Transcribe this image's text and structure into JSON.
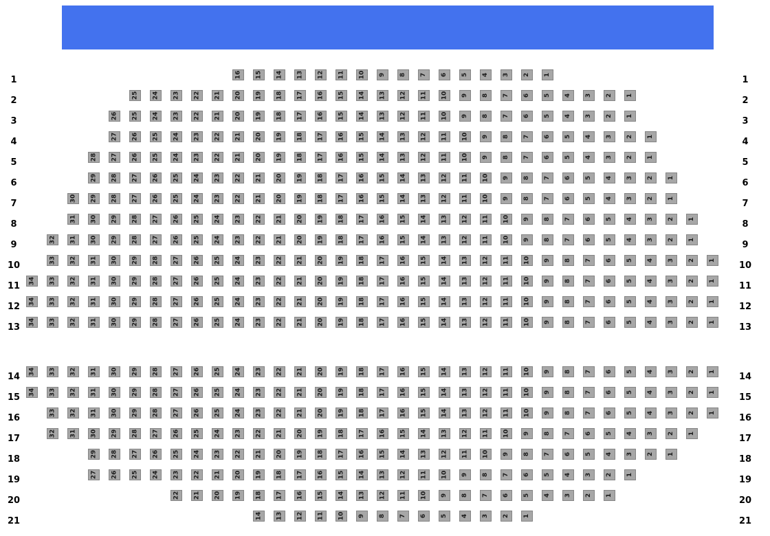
{
  "colors": {
    "background": "#ffffff",
    "stage": "#4372ee",
    "seat_fill": "#a7a7a7",
    "seat_border": "#848484",
    "seat_text": "#1c1c1c",
    "label_text": "#000000"
  },
  "stage": {},
  "rows": [
    {
      "label": "1",
      "section": 1,
      "left_col": 10,
      "seats": [
        16,
        15,
        14,
        13,
        12,
        11,
        10,
        9,
        8,
        7,
        6,
        5,
        4,
        3,
        2,
        1
      ]
    },
    {
      "label": "2",
      "section": 1,
      "left_col": 5,
      "seats": [
        25,
        24,
        23,
        22,
        21,
        20,
        19,
        18,
        17,
        16,
        15,
        14,
        13,
        12,
        11,
        10,
        9,
        8,
        7,
        6,
        5,
        4,
        3,
        2,
        1
      ]
    },
    {
      "label": "3",
      "section": 1,
      "left_col": 4,
      "seats": [
        26,
        25,
        24,
        23,
        22,
        21,
        20,
        19,
        18,
        17,
        16,
        15,
        14,
        13,
        12,
        11,
        10,
        9,
        8,
        7,
        6,
        5,
        4,
        3,
        2,
        1
      ]
    },
    {
      "label": "4",
      "section": 1,
      "left_col": 4,
      "seats": [
        27,
        26,
        25,
        24,
        23,
        22,
        21,
        20,
        19,
        18,
        17,
        16,
        15,
        14,
        13,
        12,
        11,
        10,
        9,
        8,
        7,
        6,
        5,
        4,
        3,
        2,
        1
      ]
    },
    {
      "label": "5",
      "section": 1,
      "left_col": 3,
      "seats": [
        28,
        27,
        26,
        25,
        24,
        23,
        22,
        21,
        20,
        19,
        18,
        17,
        16,
        15,
        14,
        13,
        12,
        11,
        10,
        9,
        8,
        7,
        6,
        5,
        4,
        3,
        2,
        1
      ]
    },
    {
      "label": "6",
      "section": 1,
      "left_col": 3,
      "seats": [
        29,
        28,
        27,
        26,
        25,
        24,
        23,
        22,
        21,
        20,
        19,
        18,
        17,
        16,
        15,
        14,
        13,
        12,
        11,
        10,
        9,
        8,
        7,
        6,
        5,
        4,
        3,
        2,
        1
      ]
    },
    {
      "label": "7",
      "section": 1,
      "left_col": 2,
      "seats": [
        30,
        29,
        28,
        27,
        26,
        25,
        24,
        23,
        22,
        21,
        20,
        19,
        18,
        17,
        16,
        15,
        14,
        13,
        12,
        11,
        10,
        9,
        8,
        7,
        6,
        5,
        4,
        3,
        2,
        1
      ]
    },
    {
      "label": "8",
      "section": 1,
      "left_col": 2,
      "seats": [
        31,
        30,
        29,
        28,
        27,
        26,
        25,
        24,
        23,
        22,
        21,
        20,
        19,
        18,
        17,
        16,
        15,
        14,
        13,
        12,
        11,
        10,
        9,
        8,
        7,
        6,
        5,
        4,
        3,
        2,
        1
      ]
    },
    {
      "label": "9",
      "section": 1,
      "left_col": 1,
      "seats": [
        32,
        31,
        30,
        29,
        28,
        27,
        26,
        25,
        24,
        23,
        22,
        21,
        20,
        19,
        18,
        17,
        16,
        15,
        14,
        13,
        12,
        11,
        10,
        9,
        8,
        7,
        6,
        5,
        4,
        3,
        2,
        1
      ]
    },
    {
      "label": "10",
      "section": 1,
      "left_col": 1,
      "seats": [
        33,
        32,
        31,
        30,
        29,
        28,
        27,
        26,
        25,
        24,
        23,
        22,
        21,
        20,
        19,
        18,
        17,
        16,
        15,
        14,
        13,
        12,
        11,
        10,
        9,
        8,
        7,
        6,
        5,
        4,
        3,
        2,
        1
      ]
    },
    {
      "label": "11",
      "section": 1,
      "left_col": 0,
      "seats": [
        34,
        33,
        32,
        31,
        30,
        29,
        28,
        27,
        26,
        25,
        24,
        23,
        22,
        21,
        20,
        19,
        18,
        17,
        16,
        15,
        14,
        13,
        12,
        11,
        10,
        9,
        8,
        7,
        6,
        5,
        4,
        3,
        2,
        1
      ]
    },
    {
      "label": "12",
      "section": 1,
      "left_col": 0,
      "seats": [
        34,
        33,
        32,
        31,
        30,
        29,
        28,
        27,
        26,
        25,
        24,
        23,
        22,
        21,
        20,
        19,
        18,
        17,
        16,
        15,
        14,
        13,
        12,
        11,
        10,
        9,
        8,
        7,
        6,
        5,
        4,
        3,
        2,
        1
      ]
    },
    {
      "label": "13",
      "section": 1,
      "left_col": 0,
      "seats": [
        34,
        33,
        32,
        31,
        30,
        29,
        28,
        27,
        26,
        25,
        24,
        23,
        22,
        21,
        20,
        19,
        18,
        17,
        16,
        15,
        14,
        13,
        12,
        11,
        10,
        9,
        8,
        7,
        6,
        5,
        4,
        3,
        2,
        1
      ]
    },
    {
      "label": "14",
      "section": 2,
      "left_col": 0,
      "seats": [
        34,
        33,
        32,
        31,
        30,
        29,
        28,
        27,
        26,
        25,
        24,
        23,
        22,
        21,
        20,
        19,
        18,
        17,
        16,
        15,
        14,
        13,
        12,
        11,
        10,
        9,
        8,
        7,
        6,
        5,
        4,
        3,
        2,
        1
      ]
    },
    {
      "label": "15",
      "section": 2,
      "left_col": 0,
      "seats": [
        34,
        33,
        32,
        31,
        30,
        29,
        28,
        27,
        26,
        25,
        24,
        23,
        22,
        21,
        20,
        19,
        18,
        17,
        16,
        15,
        14,
        13,
        12,
        11,
        10,
        9,
        8,
        7,
        6,
        5,
        4,
        3,
        2,
        1
      ]
    },
    {
      "label": "16",
      "section": 2,
      "left_col": 1,
      "seats": [
        33,
        32,
        31,
        30,
        29,
        28,
        27,
        26,
        25,
        24,
        23,
        22,
        21,
        20,
        19,
        18,
        17,
        16,
        15,
        14,
        13,
        12,
        11,
        10,
        9,
        8,
        7,
        6,
        5,
        4,
        3,
        2,
        1
      ]
    },
    {
      "label": "17",
      "section": 2,
      "left_col": 1,
      "seats": [
        32,
        31,
        30,
        29,
        28,
        27,
        26,
        25,
        24,
        23,
        22,
        21,
        20,
        19,
        18,
        17,
        16,
        15,
        14,
        13,
        12,
        11,
        10,
        9,
        8,
        7,
        6,
        5,
        4,
        3,
        2,
        1
      ]
    },
    {
      "label": "18",
      "section": 2,
      "left_col": 3,
      "seats": [
        29,
        28,
        27,
        26,
        25,
        24,
        23,
        22,
        21,
        20,
        19,
        18,
        17,
        16,
        15,
        14,
        13,
        12,
        11,
        10,
        9,
        8,
        7,
        6,
        5,
        4,
        3,
        2,
        1
      ]
    },
    {
      "label": "19",
      "section": 2,
      "left_col": 3,
      "seats": [
        27,
        26,
        25,
        24,
        23,
        22,
        21,
        20,
        19,
        18,
        17,
        16,
        15,
        14,
        13,
        12,
        11,
        10,
        9,
        8,
        7,
        6,
        5,
        4,
        3,
        2,
        1
      ]
    },
    {
      "label": "20",
      "section": 2,
      "left_col": 7,
      "seats": [
        22,
        21,
        20,
        19,
        18,
        17,
        16,
        15,
        14,
        13,
        12,
        11,
        10,
        9,
        8,
        7,
        6,
        5,
        4,
        3,
        2,
        1
      ]
    },
    {
      "label": "21",
      "section": 2,
      "left_col": 11,
      "seats": [
        14,
        13,
        12,
        11,
        10,
        9,
        8,
        7,
        6,
        5,
        4,
        3,
        2,
        1
      ]
    }
  ]
}
